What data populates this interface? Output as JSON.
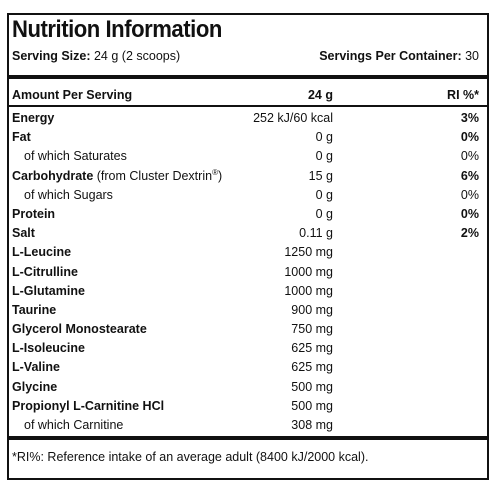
{
  "panel": {
    "title": "Nutrition Information",
    "serving_size_label": "Serving Size:",
    "serving_size_value": "24 g (2 scoops)",
    "servings_per_container_label": "Servings Per Container:",
    "servings_per_container_value": "30"
  },
  "table": {
    "headers": {
      "name": "Amount Per Serving",
      "amount": "24 g",
      "ri": "RI %*"
    },
    "rows": [
      {
        "name": "Energy",
        "amount": "252 kJ/60 kcal",
        "ri": "3%"
      },
      {
        "name": "Fat",
        "amount": "0 g",
        "ri": "0%"
      },
      {
        "name": "of which Saturates",
        "amount": "0 g",
        "ri": "0%"
      },
      {
        "name": "Carbohydrate",
        "name_suffix": "(from Cluster Dextrin",
        "name_sup": "®",
        "name_close": ")",
        "amount": "15 g",
        "ri": "6%"
      },
      {
        "name": "of which Sugars",
        "amount": "0 g",
        "ri": "0%"
      },
      {
        "name": "Protein",
        "amount": "0 g",
        "ri": "0%"
      },
      {
        "name": "Salt",
        "amount": "0.11 g",
        "ri": "2%"
      },
      {
        "name": "L-Leucine",
        "amount": "1250 mg",
        "ri": ""
      },
      {
        "name": "L-Citrulline",
        "amount": "1000 mg",
        "ri": ""
      },
      {
        "name": "L-Glutamine",
        "amount": "1000 mg",
        "ri": ""
      },
      {
        "name": "Taurine",
        "amount": "900 mg",
        "ri": ""
      },
      {
        "name": "Glycerol Monostearate",
        "amount": "750 mg",
        "ri": ""
      },
      {
        "name": "L-Isoleucine",
        "amount": "625 mg",
        "ri": ""
      },
      {
        "name": "L-Valine",
        "amount": "625 mg",
        "ri": ""
      },
      {
        "name": "Glycine",
        "amount": "500 mg",
        "ri": ""
      },
      {
        "name": "Propionyl L-Carnitine HCl",
        "amount": "500 mg",
        "ri": ""
      },
      {
        "name": "of which Carnitine",
        "amount": "308 mg",
        "ri": ""
      }
    ]
  },
  "footnote": "*RI%: Reference intake of an average adult (8400 kJ/2000 kcal)."
}
